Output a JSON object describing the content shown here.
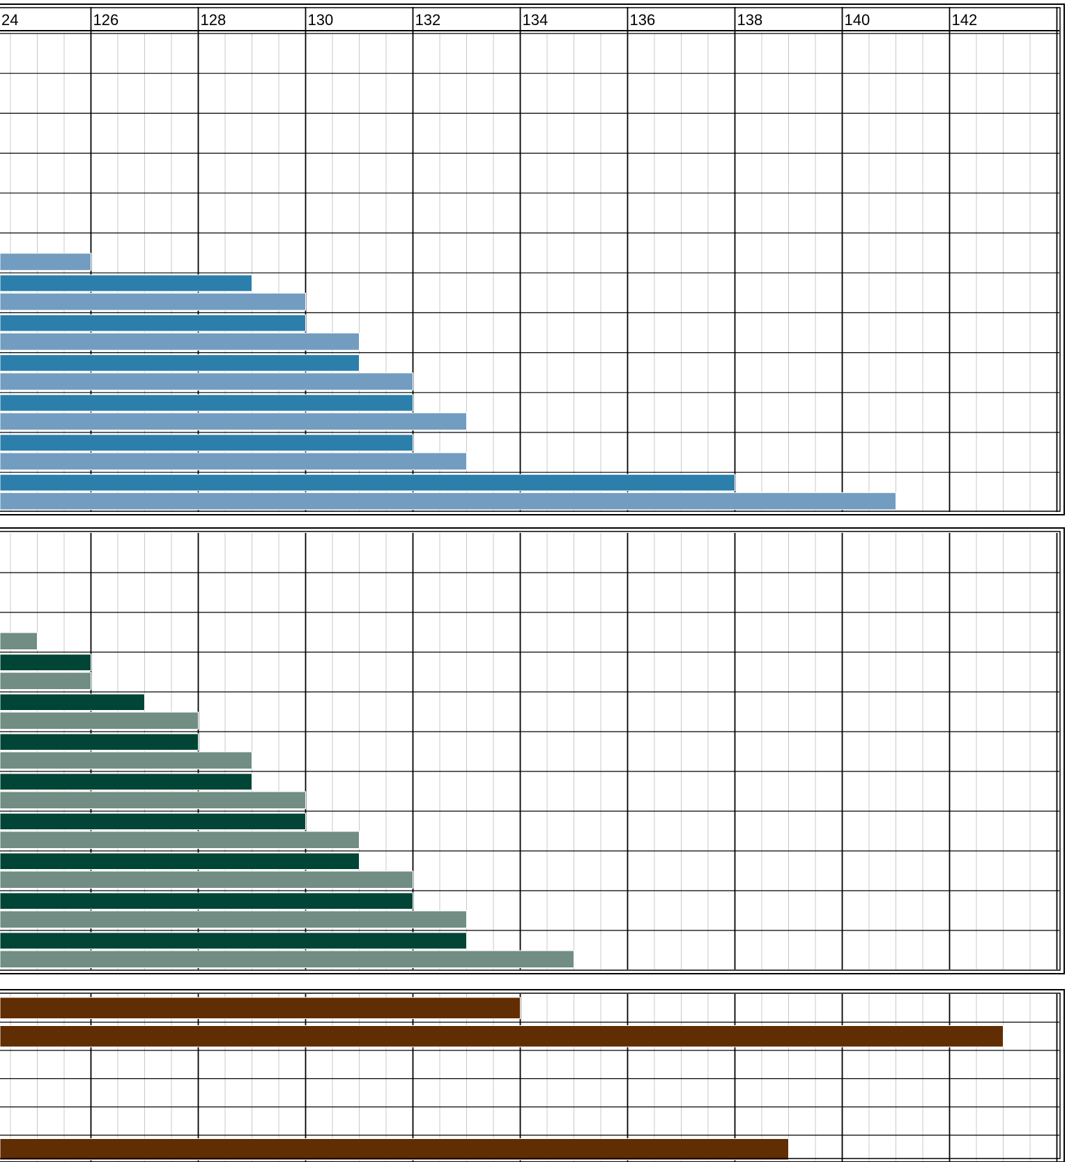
{
  "chart_data": [
    {
      "type": "bar",
      "orientation": "horizontal",
      "axis_position": "top",
      "x_ticks": [
        "24",
        "126",
        "128",
        "130",
        "132",
        "134",
        "136",
        "138",
        "140",
        "142"
      ],
      "xlim": [
        123.6,
        143.95
      ],
      "grid": true,
      "rows": 12,
      "bars": [
        {
          "row": 5,
          "slot": "bottom",
          "series": "light",
          "value": 126.0
        },
        {
          "row": 6,
          "slot": "top",
          "series": "dark",
          "value": 129.0
        },
        {
          "row": 6,
          "slot": "bottom",
          "series": "light",
          "value": 130.0
        },
        {
          "row": 7,
          "slot": "top",
          "series": "dark",
          "value": 130.0
        },
        {
          "row": 7,
          "slot": "bottom",
          "series": "light",
          "value": 131.0
        },
        {
          "row": 8,
          "slot": "top",
          "series": "dark",
          "value": 131.0
        },
        {
          "row": 8,
          "slot": "bottom",
          "series": "light",
          "value": 132.0
        },
        {
          "row": 9,
          "slot": "top",
          "series": "dark",
          "value": 132.0
        },
        {
          "row": 9,
          "slot": "bottom",
          "series": "light",
          "value": 133.0
        },
        {
          "row": 10,
          "slot": "top",
          "series": "dark",
          "value": 132.0
        },
        {
          "row": 10,
          "slot": "bottom",
          "series": "light",
          "value": 133.0
        },
        {
          "row": 11,
          "slot": "top",
          "series": "dark",
          "value": 138.0
        },
        {
          "row": 11,
          "slot": "bottom",
          "series": "light",
          "value": 141.0
        }
      ],
      "colors": {
        "dark": "#2c7fab",
        "light": "#729dc1"
      }
    },
    {
      "type": "bar",
      "orientation": "horizontal",
      "xlim": [
        123.6,
        143.95
      ],
      "grid": true,
      "rows": 11,
      "bars": [
        {
          "row": 2,
          "slot": "bottom",
          "series": "light",
          "value": 125.0
        },
        {
          "row": 3,
          "slot": "top",
          "series": "dark",
          "value": 126.0
        },
        {
          "row": 3,
          "slot": "bottom",
          "series": "light",
          "value": 126.0
        },
        {
          "row": 4,
          "slot": "top",
          "series": "dark",
          "value": 127.0
        },
        {
          "row": 4,
          "slot": "bottom",
          "series": "light",
          "value": 128.0
        },
        {
          "row": 5,
          "slot": "top",
          "series": "dark",
          "value": 128.0
        },
        {
          "row": 5,
          "slot": "bottom",
          "series": "light",
          "value": 129.0
        },
        {
          "row": 6,
          "slot": "top",
          "series": "dark",
          "value": 129.0
        },
        {
          "row": 6,
          "slot": "bottom",
          "series": "light",
          "value": 130.0
        },
        {
          "row": 7,
          "slot": "top",
          "series": "dark",
          "value": 130.0
        },
        {
          "row": 7,
          "slot": "bottom",
          "series": "light",
          "value": 131.0
        },
        {
          "row": 8,
          "slot": "top",
          "series": "dark",
          "value": 131.0
        },
        {
          "row": 8,
          "slot": "bottom",
          "series": "light",
          "value": 132.0
        },
        {
          "row": 9,
          "slot": "top",
          "series": "dark",
          "value": 132.0
        },
        {
          "row": 9,
          "slot": "bottom",
          "series": "light",
          "value": 133.0
        },
        {
          "row": 10,
          "slot": "top",
          "series": "dark",
          "value": 133.0
        },
        {
          "row": 10,
          "slot": "bottom",
          "series": "light",
          "value": 135.0
        }
      ],
      "colors": {
        "dark": "#004536",
        "light": "#718d84"
      }
    },
    {
      "type": "bar",
      "orientation": "horizontal",
      "xlim": [
        123.6,
        143.95
      ],
      "grid": true,
      "rows": 6,
      "bars": [
        {
          "row": 0,
          "slot": "full",
          "series": "main",
          "value": 134.0
        },
        {
          "row": 1,
          "slot": "full",
          "series": "main",
          "value": 143.0
        },
        {
          "row": 5,
          "slot": "full",
          "series": "main",
          "value": 139.0
        }
      ],
      "colors": {
        "main": "#612d03"
      }
    }
  ]
}
